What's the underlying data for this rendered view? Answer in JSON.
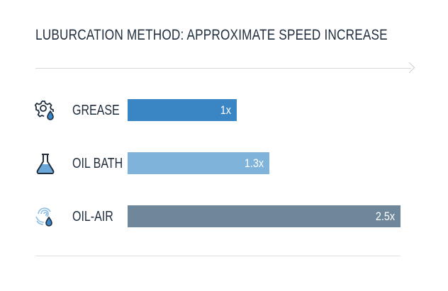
{
  "chart_data": {
    "type": "bar",
    "orientation": "horizontal",
    "title": "LUBURCATION METHOD: APPROXIMATE SPEED INCREASE",
    "categories": [
      "GREASE",
      "OIL BATH",
      "OIL-AIR"
    ],
    "values": [
      1,
      1.3,
      2.5
    ],
    "value_labels": [
      "1x",
      "1.3x",
      "2.5x"
    ],
    "icons": [
      "gear-drop-icon",
      "flask-icon",
      "swirl-drop-icon"
    ],
    "colors": [
      "#3a85c4",
      "#7fb3da",
      "#6f879b"
    ],
    "xlim": [
      0,
      2.5
    ],
    "grid": false
  }
}
